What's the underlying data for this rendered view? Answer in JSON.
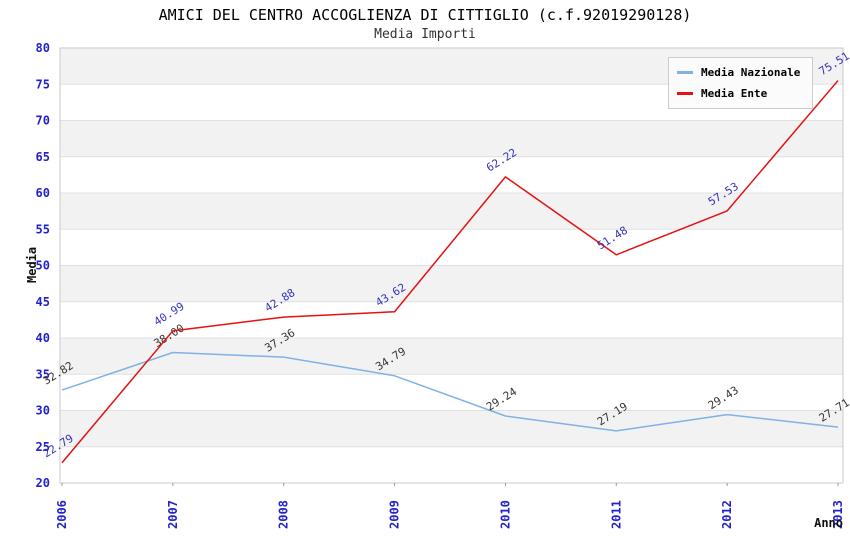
{
  "chart_data": {
    "type": "line",
    "title": "AMICI DEL CENTRO ACCOGLIENZA DI CITTIGLIO (c.f.92019290128)",
    "subtitle": "Media Importi",
    "xlabel": "Anno",
    "ylabel": "Media",
    "x": [
      "2006",
      "2007",
      "2008",
      "2009",
      "2010",
      "2011",
      "2012",
      "2013"
    ],
    "series": [
      {
        "name": "Media Nazionale",
        "color": "#7fb2e5",
        "label_color": "#333333",
        "values": [
          32.82,
          38.0,
          37.36,
          34.79,
          29.24,
          27.19,
          29.43,
          27.71
        ]
      },
      {
        "name": "Media Ente",
        "color": "#e51212",
        "label_color": "#3333bb",
        "values": [
          22.79,
          40.99,
          42.88,
          43.62,
          62.22,
          51.48,
          57.53,
          75.51
        ]
      }
    ],
    "ylim": [
      20,
      80
    ],
    "ytick_step": 5,
    "grid": true,
    "bands": true,
    "band_colors": [
      "#f2f2f2",
      "#ffffff"
    ],
    "gridline_color": "#e0e0e0",
    "border_color": "#c9c9c9",
    "axis_tick_color": "#2222cc",
    "legend_position": "top-right"
  }
}
